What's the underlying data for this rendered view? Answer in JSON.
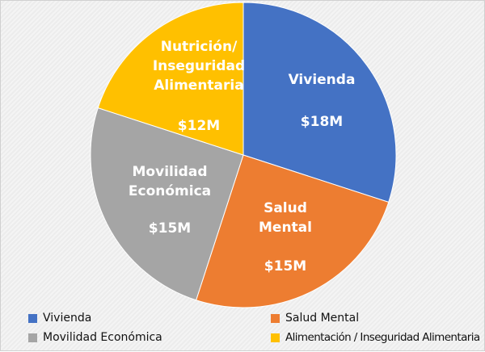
{
  "chart_data": {
    "type": "pie",
    "start_angle": "top",
    "direction": "clockwise",
    "slices": [
      {
        "name": "Vivienda",
        "label_lines": [
          "Vivienda"
        ],
        "value": 18,
        "value_label": "$18M",
        "color": "#4472C4"
      },
      {
        "name": "Salud Mental",
        "label_lines": [
          "Salud",
          "Mental"
        ],
        "value": 15,
        "value_label": "$15M",
        "color": "#ED7D31"
      },
      {
        "name": "Movilidad Económica",
        "label_lines": [
          "Movilidad",
          "Económica"
        ],
        "value": 15,
        "value_label": "$15M",
        "color": "#A5A5A5"
      },
      {
        "name": "Alimentación / Inseguridad Alimentaria",
        "label_lines": [
          "Nutrición/",
          "Inseguridad",
          "Alimentaria"
        ],
        "value": 12,
        "value_label": "$12M",
        "color": "#FFC000"
      }
    ],
    "legend_position": "bottom"
  }
}
